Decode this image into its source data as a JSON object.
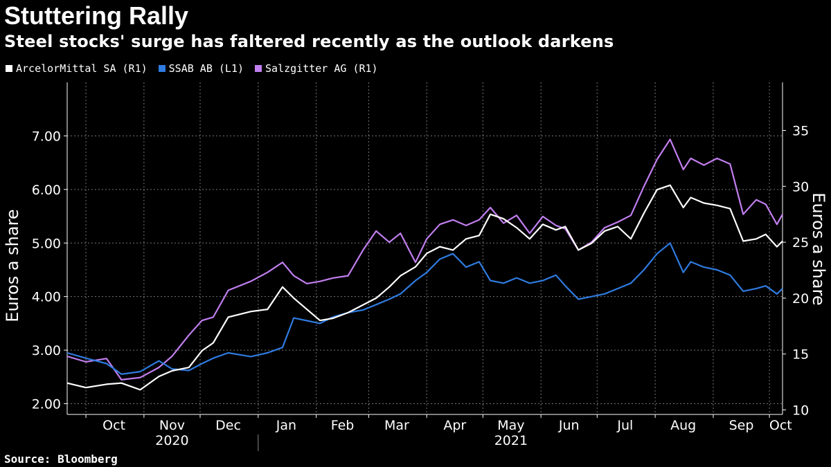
{
  "header": {
    "title": "Stuttering Rally",
    "subtitle": "Steel stocks' surge has faltered recently as the outlook darkens"
  },
  "source": "Source: Bloomberg",
  "colors": {
    "background": "#000000",
    "arcelor": "#ffffff",
    "ssab": "#2f7be0",
    "salzgitter": "#c27ff0",
    "grid": "#777777"
  },
  "chart_data": {
    "type": "line",
    "grid": true,
    "legend_position": "top-left",
    "x_month_labels": [
      "Oct",
      "Nov",
      "Dec",
      "Jan",
      "Feb",
      "Mar",
      "Apr",
      "May",
      "Jun",
      "Jul",
      "Aug",
      "Sep",
      "Oct"
    ],
    "x_year_labels": [
      "2020",
      "2021"
    ],
    "x_range": [
      "2020-09-21",
      "2021-10-08"
    ],
    "y_left": {
      "label": "Euros a share",
      "range": [
        1.8,
        8.0
      ],
      "ticks": [
        "2.00",
        "3.00",
        "4.00",
        "5.00",
        "6.00",
        "7.00"
      ]
    },
    "y_right": {
      "label": "Euros a share",
      "range": [
        9.6,
        39.3
      ],
      "ticks": [
        "10",
        "15",
        "20",
        "25",
        "30",
        "35"
      ]
    },
    "series": [
      {
        "name": "ArcelorMittal SA (R1)",
        "axis": "right",
        "color": "#ffffff",
        "points": [
          [
            "2020-09-21",
            12.4
          ],
          [
            "2020-10-01",
            12.0
          ],
          [
            "2020-10-12",
            12.3
          ],
          [
            "2020-10-20",
            12.4
          ],
          [
            "2020-10-30",
            11.8
          ],
          [
            "2020-11-09",
            13.0
          ],
          [
            "2020-11-16",
            13.5
          ],
          [
            "2020-11-25",
            13.8
          ],
          [
            "2020-12-02",
            15.3
          ],
          [
            "2020-12-08",
            16.0
          ],
          [
            "2020-12-16",
            18.3
          ],
          [
            "2020-12-28",
            18.8
          ],
          [
            "2021-01-06",
            19.0
          ],
          [
            "2021-01-14",
            21.0
          ],
          [
            "2021-01-20",
            20.0
          ],
          [
            "2021-01-27",
            19.0
          ],
          [
            "2021-02-03",
            18.0
          ],
          [
            "2021-02-10",
            18.2
          ],
          [
            "2021-02-18",
            18.7
          ],
          [
            "2021-02-26",
            19.4
          ],
          [
            "2021-03-05",
            20.0
          ],
          [
            "2021-03-12",
            21.0
          ],
          [
            "2021-03-18",
            22.0
          ],
          [
            "2021-03-26",
            22.8
          ],
          [
            "2021-04-01",
            24.0
          ],
          [
            "2021-04-08",
            24.6
          ],
          [
            "2021-04-15",
            24.3
          ],
          [
            "2021-04-22",
            25.3
          ],
          [
            "2021-04-29",
            25.6
          ],
          [
            "2021-05-05",
            27.5
          ],
          [
            "2021-05-12",
            27.1
          ],
          [
            "2021-05-19",
            26.3
          ],
          [
            "2021-05-26",
            25.3
          ],
          [
            "2021-06-02",
            26.6
          ],
          [
            "2021-06-09",
            26.1
          ],
          [
            "2021-06-14",
            26.4
          ],
          [
            "2021-06-21",
            24.3
          ],
          [
            "2021-06-28",
            24.9
          ],
          [
            "2021-07-05",
            26.0
          ],
          [
            "2021-07-12",
            26.4
          ],
          [
            "2021-07-19",
            25.3
          ],
          [
            "2021-07-26",
            27.6
          ],
          [
            "2021-08-02",
            29.7
          ],
          [
            "2021-08-09",
            30.1
          ],
          [
            "2021-08-16",
            28.1
          ],
          [
            "2021-08-20",
            29.0
          ],
          [
            "2021-08-27",
            28.5
          ],
          [
            "2021-09-03",
            28.3
          ],
          [
            "2021-09-10",
            28.0
          ],
          [
            "2021-09-17",
            25.1
          ],
          [
            "2021-09-24",
            25.3
          ],
          [
            "2021-09-29",
            25.7
          ],
          [
            "2021-10-05",
            24.6
          ],
          [
            "2021-10-08",
            25.1
          ]
        ]
      },
      {
        "name": "SSAB AB (L1)",
        "axis": "left",
        "color": "#2f7be0",
        "points": [
          [
            "2020-09-21",
            2.95
          ],
          [
            "2020-10-01",
            2.85
          ],
          [
            "2020-10-12",
            2.75
          ],
          [
            "2020-10-20",
            2.55
          ],
          [
            "2020-10-30",
            2.6
          ],
          [
            "2020-11-09",
            2.8
          ],
          [
            "2020-11-16",
            2.65
          ],
          [
            "2020-11-25",
            2.62
          ],
          [
            "2020-12-02",
            2.75
          ],
          [
            "2020-12-08",
            2.85
          ],
          [
            "2020-12-16",
            2.95
          ],
          [
            "2020-12-28",
            2.88
          ],
          [
            "2021-01-06",
            2.95
          ],
          [
            "2021-01-14",
            3.05
          ],
          [
            "2021-01-20",
            3.6
          ],
          [
            "2021-01-27",
            3.55
          ],
          [
            "2021-02-03",
            3.5
          ],
          [
            "2021-02-10",
            3.62
          ],
          [
            "2021-02-18",
            3.7
          ],
          [
            "2021-02-26",
            3.75
          ],
          [
            "2021-03-05",
            3.85
          ],
          [
            "2021-03-12",
            3.95
          ],
          [
            "2021-03-18",
            4.05
          ],
          [
            "2021-03-26",
            4.3
          ],
          [
            "2021-04-01",
            4.45
          ],
          [
            "2021-04-08",
            4.7
          ],
          [
            "2021-04-15",
            4.8
          ],
          [
            "2021-04-22",
            4.55
          ],
          [
            "2021-04-29",
            4.65
          ],
          [
            "2021-05-05",
            4.3
          ],
          [
            "2021-05-12",
            4.25
          ],
          [
            "2021-05-19",
            4.35
          ],
          [
            "2021-05-26",
            4.25
          ],
          [
            "2021-06-02",
            4.3
          ],
          [
            "2021-06-09",
            4.4
          ],
          [
            "2021-06-14",
            4.2
          ],
          [
            "2021-06-21",
            3.95
          ],
          [
            "2021-06-28",
            4.0
          ],
          [
            "2021-07-05",
            4.05
          ],
          [
            "2021-07-12",
            4.15
          ],
          [
            "2021-07-19",
            4.25
          ],
          [
            "2021-07-26",
            4.5
          ],
          [
            "2021-08-02",
            4.8
          ],
          [
            "2021-08-09",
            5.0
          ],
          [
            "2021-08-16",
            4.45
          ],
          [
            "2021-08-20",
            4.65
          ],
          [
            "2021-08-27",
            4.55
          ],
          [
            "2021-09-03",
            4.5
          ],
          [
            "2021-09-10",
            4.4
          ],
          [
            "2021-09-17",
            4.1
          ],
          [
            "2021-09-24",
            4.15
          ],
          [
            "2021-09-29",
            4.2
          ],
          [
            "2021-10-05",
            4.05
          ],
          [
            "2021-10-08",
            4.15
          ]
        ]
      },
      {
        "name": "Salzgitter AG (R1)",
        "axis": "right",
        "color": "#c27ff0",
        "points": [
          [
            "2020-09-21",
            14.8
          ],
          [
            "2020-10-01",
            14.3
          ],
          [
            "2020-10-12",
            14.6
          ],
          [
            "2020-10-20",
            12.7
          ],
          [
            "2020-10-30",
            12.9
          ],
          [
            "2020-11-09",
            13.8
          ],
          [
            "2020-11-16",
            14.8
          ],
          [
            "2020-11-25",
            16.7
          ],
          [
            "2020-12-02",
            18.0
          ],
          [
            "2020-12-08",
            18.3
          ],
          [
            "2020-12-16",
            20.7
          ],
          [
            "2020-12-28",
            21.5
          ],
          [
            "2021-01-06",
            22.3
          ],
          [
            "2021-01-14",
            23.2
          ],
          [
            "2021-01-20",
            22.0
          ],
          [
            "2021-01-27",
            21.3
          ],
          [
            "2021-02-03",
            21.5
          ],
          [
            "2021-02-10",
            21.8
          ],
          [
            "2021-02-18",
            22.0
          ],
          [
            "2021-02-26",
            24.3
          ],
          [
            "2021-03-05",
            26.0
          ],
          [
            "2021-03-12",
            25.0
          ],
          [
            "2021-03-18",
            25.8
          ],
          [
            "2021-03-26",
            23.2
          ],
          [
            "2021-04-01",
            25.3
          ],
          [
            "2021-04-08",
            26.6
          ],
          [
            "2021-04-15",
            27.0
          ],
          [
            "2021-04-22",
            26.5
          ],
          [
            "2021-04-29",
            27.0
          ],
          [
            "2021-05-05",
            28.1
          ],
          [
            "2021-05-12",
            26.7
          ],
          [
            "2021-05-19",
            27.4
          ],
          [
            "2021-05-26",
            25.8
          ],
          [
            "2021-06-02",
            27.3
          ],
          [
            "2021-06-09",
            26.5
          ],
          [
            "2021-06-14",
            26.2
          ],
          [
            "2021-06-21",
            24.3
          ],
          [
            "2021-06-28",
            25.0
          ],
          [
            "2021-07-05",
            26.3
          ],
          [
            "2021-07-12",
            26.8
          ],
          [
            "2021-07-19",
            27.4
          ],
          [
            "2021-07-26",
            30.0
          ],
          [
            "2021-08-02",
            32.4
          ],
          [
            "2021-08-09",
            34.2
          ],
          [
            "2021-08-16",
            31.5
          ],
          [
            "2021-08-20",
            32.5
          ],
          [
            "2021-08-27",
            31.9
          ],
          [
            "2021-09-03",
            32.5
          ],
          [
            "2021-09-10",
            32.0
          ],
          [
            "2021-09-17",
            27.5
          ],
          [
            "2021-09-24",
            28.8
          ],
          [
            "2021-09-29",
            28.4
          ],
          [
            "2021-10-05",
            26.6
          ],
          [
            "2021-10-08",
            27.5
          ]
        ]
      }
    ]
  }
}
